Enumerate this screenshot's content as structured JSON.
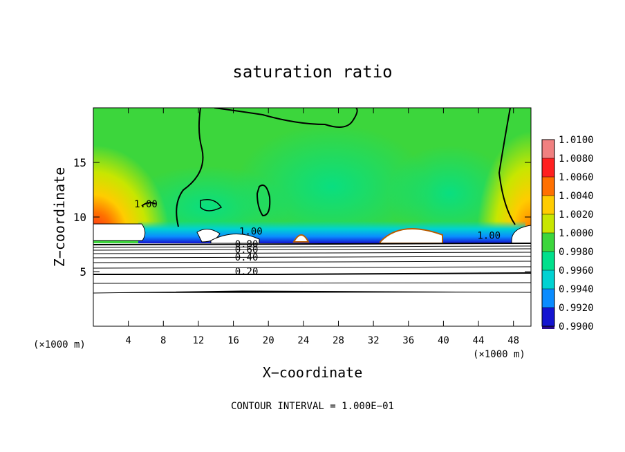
{
  "chart_data": {
    "type": "heatmap",
    "title": "saturation ratio",
    "xlabel": "X−coordinate",
    "ylabel": "Z−coordinate",
    "x_unit_label": "(×1000 m)",
    "footer": "CONTOUR INTERVAL = 1.000E−01",
    "x_ticks": [
      4,
      8,
      12,
      16,
      20,
      24,
      28,
      32,
      36,
      40,
      44,
      48
    ],
    "y_ticks": [
      5,
      10,
      15
    ],
    "xlim": [
      0,
      50
    ],
    "ylim": [
      0,
      20
    ],
    "colorbar": {
      "labels": [
        "1.0100",
        "1.0080",
        "1.0060",
        "1.0040",
        "1.0020",
        "1.0000",
        "0.9980",
        "0.9960",
        "0.9940",
        "0.9920",
        "0.9900"
      ],
      "colors": [
        "#f08080",
        "#ff2020",
        "#ff7000",
        "#ffcc00",
        "#c8e600",
        "#3cd63c",
        "#00e08c",
        "#00d2d2",
        "#0a8cff",
        "#1414d0",
        "#2a0a8c"
      ]
    },
    "contour_labels": [
      {
        "text": "1.00",
        "x": 6.0,
        "z": 10.9
      },
      {
        "text": "1.00",
        "x": 18.0,
        "z": 8.4
      },
      {
        "text": "0.80",
        "x": 17.5,
        "z": 7.2
      },
      {
        "text": "0.60",
        "x": 17.5,
        "z": 6.7
      },
      {
        "text": "0.40",
        "x": 17.5,
        "z": 6.0
      },
      {
        "text": "0.20",
        "x": 17.5,
        "z": 4.7
      },
      {
        "text": "1.00",
        "x": 45.2,
        "z": 8.0
      }
    ],
    "background_value": 1.0
  }
}
